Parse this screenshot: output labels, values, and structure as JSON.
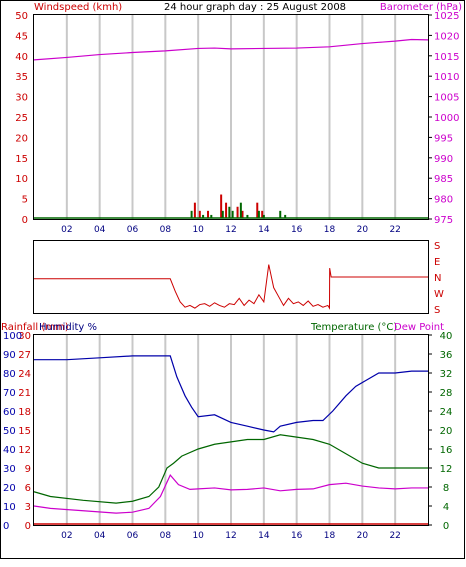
{
  "header": {
    "windspeed_label": "Windspeed (kmh)",
    "title": "24 hour graph day : 25 August 2008",
    "barometer_label": "Barometer (hPa)"
  },
  "colors": {
    "frame": "#000000",
    "grid": "#c8c8c8",
    "wind": "#cc0000",
    "gust": "#006600",
    "barometer": "#cc00cc",
    "humidity": "#0000aa",
    "temperature": "#006600",
    "dewpoint": "#cc00cc",
    "rainfall": "#cc0000",
    "xtick": "#000080",
    "winddir": "#cc0000"
  },
  "panel3_labels": {
    "rainfall": "Rainfall (mm)",
    "humidity": "Humidity %",
    "temperature": "Temperature (°C)",
    "dewpoint": "Dew Point"
  },
  "compass_labels": [
    "S",
    "E",
    "N",
    "W",
    "S"
  ],
  "x_ticks": [
    "02",
    "04",
    "06",
    "08",
    "10",
    "12",
    "14",
    "16",
    "18",
    "20",
    "22"
  ],
  "chart_data": [
    {
      "type": "line",
      "panel": "wind_barometer",
      "title": "24 hour graph day : 25 August 2008",
      "y_left": {
        "label": "Windspeed (kmh)",
        "range": [
          0,
          50
        ],
        "ticks": [
          0,
          5,
          10,
          15,
          20,
          25,
          30,
          35,
          40,
          45,
          50
        ]
      },
      "y_right": {
        "label": "Barometer (hPa)",
        "range": [
          975,
          1025
        ],
        "ticks": [
          975,
          980,
          985,
          990,
          995,
          1000,
          1005,
          1010,
          1015,
          1020,
          1025
        ]
      },
      "x_range": [
        0,
        24
      ],
      "grid": true,
      "series": [
        {
          "axis": "right",
          "x": [
            0,
            2,
            4,
            6,
            8,
            10,
            11,
            12,
            14,
            16,
            18,
            19,
            20,
            21,
            22,
            23,
            24
          ],
          "values": [
            1014.0,
            1014.6,
            1015.3,
            1015.8,
            1016.2,
            1016.8,
            1016.9,
            1016.7,
            1016.8,
            1016.9,
            1017.2,
            1017.6,
            1018.0,
            1018.3,
            1018.6,
            1019.0,
            1018.9
          ]
        },
        {
          "axis": "left",
          "bars": true,
          "x": [
            9.8,
            10.1,
            10.6,
            11.4,
            11.7,
            12.4,
            12.7,
            13.6,
            13.9
          ],
          "values": [
            4,
            2,
            2,
            6,
            4,
            3,
            2,
            4,
            2
          ]
        },
        {
          "axis": "left",
          "bars": true,
          "x": [
            9.6,
            10.3,
            10.8,
            11.5,
            11.9,
            12.1,
            12.6,
            13.0,
            13.7,
            14.0,
            15.0,
            15.3
          ],
          "values": [
            2,
            1,
            1,
            2,
            3,
            2,
            4,
            1,
            2,
            1,
            2,
            1
          ]
        }
      ]
    },
    {
      "type": "line",
      "panel": "wind_direction",
      "y_categories": [
        "S",
        "E",
        "N",
        "W",
        "S"
      ],
      "y_range": [
        0,
        360
      ],
      "x_range": [
        0,
        24
      ],
      "series": [
        {
          "x": [
            0,
            8.3,
            8.6,
            8.9,
            9.2,
            9.5,
            9.8,
            10.1,
            10.4,
            10.7,
            11.0,
            11.3,
            11.6,
            11.9,
            12.2,
            12.5,
            12.8,
            13.1,
            13.4,
            13.7,
            14.0,
            14.3,
            14.6,
            14.9,
            15.2,
            15.5,
            15.8,
            16.1,
            16.4,
            16.7,
            17.0,
            17.3,
            17.6,
            17.9,
            18.0,
            18.01,
            18.1,
            24
          ],
          "values": [
            170,
            170,
            100,
            40,
            10,
            20,
            5,
            25,
            30,
            15,
            35,
            20,
            10,
            30,
            25,
            60,
            20,
            50,
            30,
            80,
            40,
            250,
            120,
            70,
            20,
            60,
            30,
            40,
            20,
            45,
            15,
            25,
            10,
            20,
            5,
            230,
            180,
            180
          ]
        }
      ]
    },
    {
      "type": "line",
      "panel": "humidity_temperature",
      "y_left_outer": {
        "label": "Rainfall (mm)",
        "range": [
          0,
          30
        ],
        "ticks": [
          0,
          3,
          6,
          9,
          12,
          15,
          18,
          21,
          24,
          27,
          30
        ]
      },
      "y_left_inner": {
        "label": "Humidity %",
        "range": [
          0,
          100
        ],
        "ticks": [
          0,
          10,
          20,
          30,
          40,
          50,
          60,
          70,
          80,
          90,
          100
        ]
      },
      "y_right": {
        "label": "Temperature (°C)",
        "range": [
          0,
          40
        ],
        "ticks": [
          0,
          4,
          8,
          12,
          16,
          20,
          24,
          28,
          32,
          36,
          40
        ]
      },
      "x_range": [
        0,
        24
      ],
      "grid": true,
      "series": [
        {
          "name": "Humidity %",
          "axis": "left_inner",
          "x": [
            0,
            2,
            4,
            6,
            7.5,
            8.3,
            8.7,
            9.2,
            9.6,
            10.0,
            11,
            12,
            13,
            14,
            14.6,
            15,
            16,
            17,
            17.6,
            18.2,
            19,
            19.6,
            20.2,
            21,
            22,
            23,
            24
          ],
          "values": [
            87,
            87,
            88,
            89,
            89,
            89,
            78,
            68,
            62,
            57,
            58,
            54,
            52,
            50,
            49,
            52,
            54,
            55,
            55,
            60,
            68,
            73,
            76,
            80,
            80,
            81,
            81
          ]
        },
        {
          "name": "Temperature (°C)",
          "axis": "right",
          "x": [
            0,
            1,
            3,
            5,
            6,
            7,
            7.6,
            8.1,
            8.5,
            9,
            10,
            11,
            12,
            13,
            14,
            15,
            16,
            17,
            18,
            19,
            20,
            21,
            22,
            23,
            24
          ],
          "values": [
            7.0,
            6.0,
            5.2,
            4.6,
            5.0,
            6.0,
            8.0,
            12.0,
            13.0,
            14.5,
            16.0,
            17.0,
            17.5,
            18.0,
            18.0,
            19.0,
            18.5,
            18.0,
            17.0,
            15.0,
            13.0,
            12.0,
            12.0,
            12.0,
            12.0
          ]
        },
        {
          "name": "Dew Point",
          "axis": "right",
          "x": [
            0,
            1,
            3,
            5,
            6,
            7,
            7.7,
            8.3,
            8.8,
            9.5,
            10,
            11,
            12,
            13,
            14,
            15,
            16,
            17,
            18,
            19,
            20,
            21,
            22,
            23,
            24
          ],
          "values": [
            4.0,
            3.5,
            3.0,
            2.5,
            2.7,
            3.5,
            6.0,
            10.5,
            8.5,
            7.5,
            7.6,
            7.8,
            7.4,
            7.5,
            7.8,
            7.2,
            7.5,
            7.6,
            8.5,
            8.8,
            8.2,
            7.8,
            7.6,
            7.8,
            7.8
          ]
        },
        {
          "name": "Rainfall (mm)",
          "axis": "left_outer",
          "x": [
            0,
            24
          ],
          "values": [
            0,
            0
          ]
        }
      ]
    }
  ]
}
